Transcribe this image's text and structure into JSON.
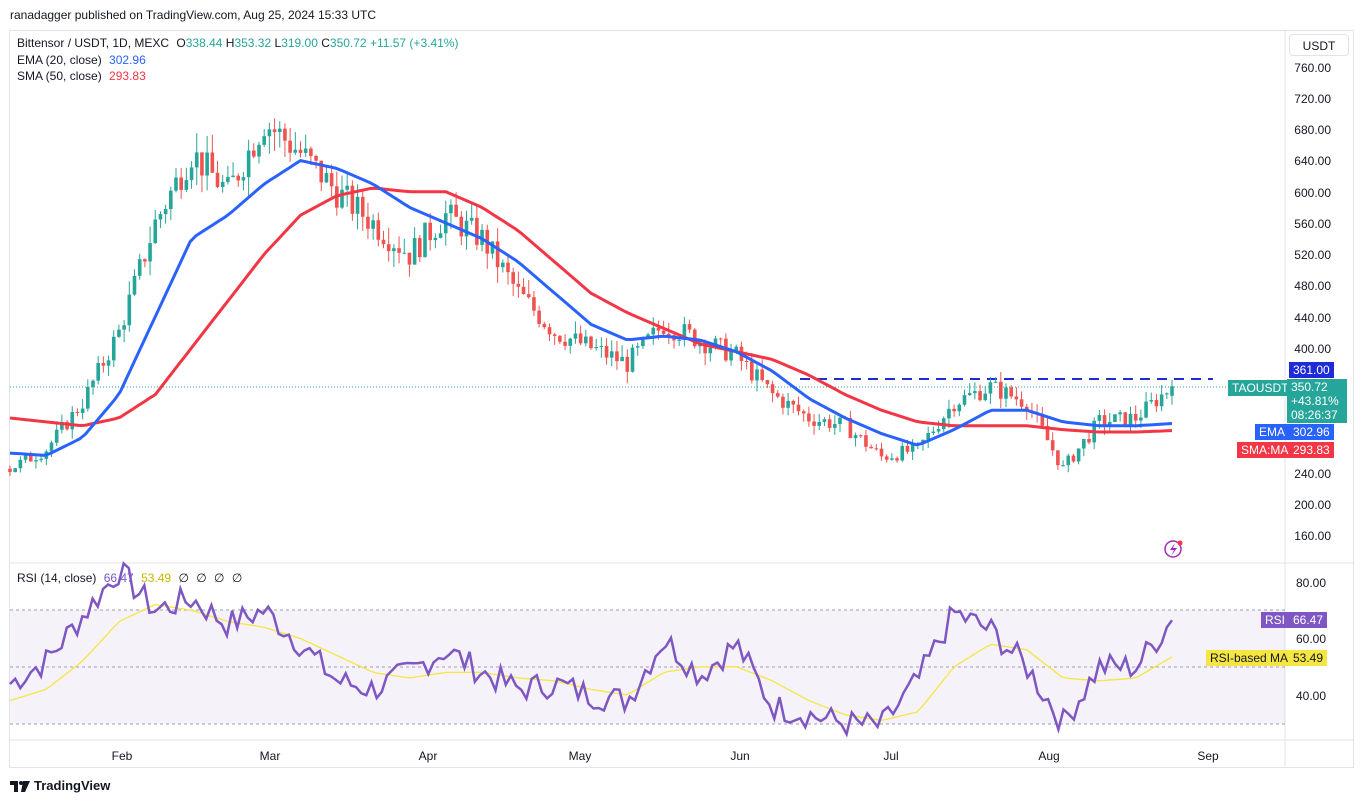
{
  "header": {
    "publisher": "ranadagger published on TradingView.com, Aug 25, 2024 15:33 UTC"
  },
  "legend": {
    "symbol": "Bittensor / USDT, 1D, MEXC",
    "o_label": "O",
    "o": "338.44",
    "h_label": "H",
    "h": "353.32",
    "l_label": "L",
    "l": "319.00",
    "c_label": "C",
    "c": "350.72",
    "change": "+11.57 (+3.41%)",
    "ema_label": "EMA (20, close)",
    "ema_value": "302.96",
    "sma_label": "SMA (50, close)",
    "sma_value": "293.83",
    "rsi_label": "RSI (14, close)",
    "rsi_value": "66.47",
    "rsi_ma_value": "53.49",
    "rsi_extra": [
      "∅",
      "∅",
      "∅",
      "∅"
    ]
  },
  "price_axis": {
    "unit": "USDT",
    "ticks": [
      "760.00",
      "720.00",
      "680.00",
      "640.00",
      "600.00",
      "560.00",
      "520.00",
      "480.00",
      "440.00",
      "400.00",
      "240.00",
      "200.00",
      "160.00"
    ]
  },
  "rsi_axis": {
    "ticks": [
      "80.00",
      "60.00",
      "40.00"
    ]
  },
  "time_axis": {
    "labels": [
      "Feb",
      "Mar",
      "Apr",
      "May",
      "Jun",
      "Jul",
      "Aug",
      "Sep"
    ]
  },
  "tags": {
    "resistance": "361.00",
    "ticker": "TAOUSDT",
    "ticker_price": "350.72",
    "ticker_change": "+43.81%",
    "ticker_countdown": "08:26:37",
    "ema_name": "EMA",
    "ema_value": "302.96",
    "sma_name": "SMA:MA",
    "sma_value": "293.83",
    "rsi_name": "RSI",
    "rsi_value": "66.47",
    "rsi_ma_name": "RSI-based MA",
    "rsi_ma_value": "53.49"
  },
  "footer": {
    "brand": "TradingView"
  },
  "colors": {
    "up": "#26a69a",
    "down": "#ef5350",
    "ema": "#2962ff",
    "sma": "#f23645",
    "rsi": "#7e57c2",
    "rsi_ma": "#f5e642",
    "resistance": "#1f2bd6"
  },
  "chart_data": [
    {
      "type": "candlestick",
      "title": "Bittensor / USDT, 1D, MEXC",
      "x": [
        "Jan 13",
        "Jan 20",
        "Jan 27",
        "Feb 3",
        "Feb 10",
        "Feb 17",
        "Feb 24",
        "Mar 2",
        "Mar 9",
        "Mar 16",
        "Mar 23",
        "Mar 30",
        "Apr 6",
        "Apr 13",
        "Apr 20",
        "Apr 27",
        "May 4",
        "May 11",
        "May 18",
        "May 25",
        "Jun 1",
        "Jun 8",
        "Jun 15",
        "Jun 22",
        "Jun 29",
        "Jul 6",
        "Jul 13",
        "Jul 20",
        "Jul 27",
        "Aug 3",
        "Aug 10",
        "Aug 17",
        "Aug 24"
      ],
      "close": [
        245,
        270,
        330,
        420,
        560,
        650,
        600,
        690,
        650,
        600,
        560,
        520,
        570,
        540,
        470,
        420,
        400,
        380,
        430,
        410,
        390,
        340,
        310,
        300,
        260,
        270,
        330,
        350,
        330,
        245,
        305,
        310,
        350.72
      ],
      "series": [
        {
          "name": "EMA (20, close)",
          "values": [
            265,
            262,
            285,
            340,
            440,
            540,
            570,
            610,
            640,
            630,
            610,
            580,
            560,
            540,
            510,
            470,
            430,
            410,
            415,
            410,
            395,
            370,
            335,
            310,
            290,
            275,
            295,
            320,
            320,
            305,
            300,
            300,
            302.96
          ]
        },
        {
          "name": "SMA (50, close)",
          "values": [
            310,
            305,
            300,
            310,
            340,
            400,
            460,
            520,
            570,
            595,
            605,
            600,
            600,
            580,
            550,
            510,
            470,
            445,
            425,
            405,
            395,
            385,
            365,
            340,
            320,
            305,
            300,
            300,
            300,
            295,
            292,
            292,
            293.83
          ]
        }
      ],
      "horizontal_line": {
        "value": 361.0
      },
      "ylim": [
        140,
        780
      ],
      "ylabel": "USDT"
    },
    {
      "type": "line",
      "title": "RSI (14, close)",
      "x": [
        "Jan 13",
        "Jan 20",
        "Jan 27",
        "Feb 3",
        "Feb 10",
        "Feb 17",
        "Feb 24",
        "Mar 2",
        "Mar 9",
        "Mar 16",
        "Mar 23",
        "Mar 30",
        "Apr 6",
        "Apr 13",
        "Apr 20",
        "Apr 27",
        "May 4",
        "May 11",
        "May 18",
        "May 25",
        "Jun 1",
        "Jun 8",
        "Jun 15",
        "Jun 22",
        "Jun 29",
        "Jul 6",
        "Jul 13",
        "Jul 20",
        "Jul 27",
        "Aug 3",
        "Aug 10",
        "Aug 17",
        "Aug 24"
      ],
      "series": [
        {
          "name": "RSI",
          "values": [
            44,
            52,
            68,
            84,
            70,
            74,
            65,
            70,
            58,
            45,
            42,
            48,
            56,
            48,
            42,
            44,
            40,
            38,
            60,
            47,
            58,
            36,
            33,
            30,
            29,
            45,
            69,
            63,
            50,
            30,
            50,
            50,
            66.47
          ]
        },
        {
          "name": "RSI-based MA",
          "values": [
            38,
            42,
            52,
            66,
            72,
            70,
            66,
            64,
            60,
            54,
            48,
            46,
            48,
            48,
            46,
            45,
            42,
            40,
            48,
            50,
            50,
            45,
            38,
            33,
            31,
            34,
            50,
            58,
            56,
            46,
            45,
            46,
            53.49
          ]
        }
      ],
      "bands": [
        30,
        70
      ],
      "ylim": [
        25,
        90
      ]
    }
  ]
}
